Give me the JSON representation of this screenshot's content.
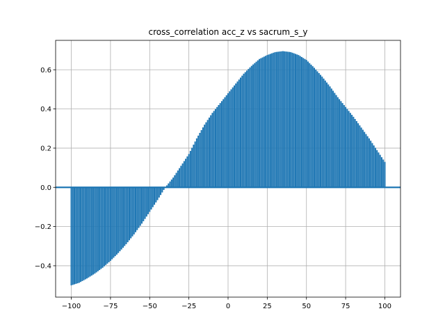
{
  "chart_data": {
    "type": "bar",
    "title": "cross_correlation acc_z vs sacrum_s_y",
    "xlabel": "",
    "ylabel": "",
    "xlim": [
      -110,
      110
    ],
    "ylim": [
      -0.56,
      0.75
    ],
    "grid": true,
    "legend": "none",
    "bar_color": "#1f77b4",
    "baseline": 0.0,
    "xticks": [
      -100,
      -75,
      -50,
      -25,
      0,
      25,
      50,
      75,
      100
    ],
    "xtick_labels": [
      "−100",
      "−75",
      "−50",
      "−25",
      "0",
      "25",
      "50",
      "75",
      "100"
    ],
    "yticks": [
      -0.4,
      -0.2,
      0.0,
      0.2,
      0.4,
      0.6
    ],
    "ytick_labels": [
      "−0.4",
      "−0.2",
      "0.0",
      "0.2",
      "0.4",
      "0.6"
    ],
    "series": [
      {
        "x": [
          -100,
          -95,
          -90,
          -85,
          -80,
          -75,
          -70,
          -65,
          -60,
          -55,
          -50,
          -45,
          -40,
          -35,
          -30,
          -25,
          -20,
          -15,
          -10,
          -5,
          0,
          5,
          10,
          15,
          20,
          25,
          30,
          35,
          40,
          45,
          50,
          55,
          60,
          65,
          70,
          75,
          80,
          85,
          90,
          95,
          100
        ],
        "values": [
          -0.5,
          -0.487,
          -0.465,
          -0.44,
          -0.41,
          -0.375,
          -0.335,
          -0.29,
          -0.24,
          -0.185,
          -0.125,
          -0.065,
          0.0,
          0.05,
          0.11,
          0.17,
          0.25,
          0.32,
          0.38,
          0.43,
          0.48,
          0.53,
          0.58,
          0.62,
          0.655,
          0.675,
          0.69,
          0.695,
          0.69,
          0.675,
          0.65,
          0.61,
          0.565,
          0.515,
          0.46,
          0.41,
          0.36,
          0.305,
          0.25,
          0.19,
          0.13
        ]
      }
    ]
  }
}
